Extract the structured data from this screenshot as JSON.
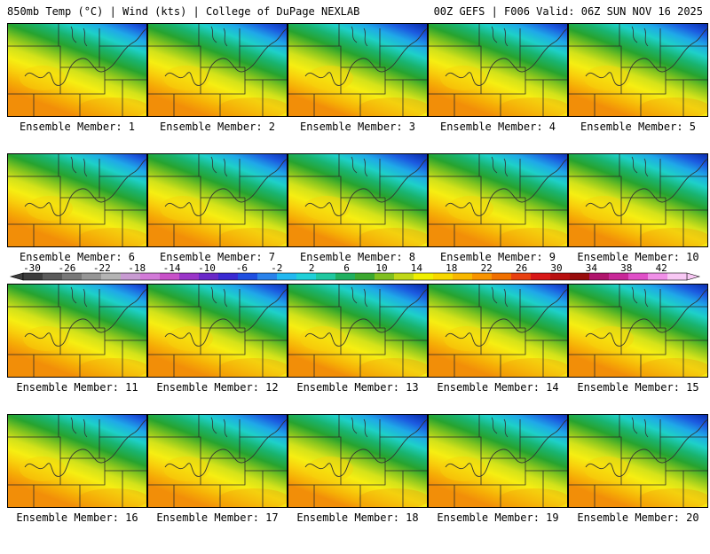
{
  "header": {
    "left": "850mb Temp (°C) | Wind (kts) | College of DuPage NEXLAB",
    "right": "00Z GEFS | F006 Valid: 06Z SUN NOV 16 2025"
  },
  "members": [
    {
      "label": "Ensemble Member: 1"
    },
    {
      "label": "Ensemble Member: 2"
    },
    {
      "label": "Ensemble Member: 3"
    },
    {
      "label": "Ensemble Member: 4"
    },
    {
      "label": "Ensemble Member: 5"
    },
    {
      "label": "Ensemble Member: 6"
    },
    {
      "label": "Ensemble Member: 7"
    },
    {
      "label": "Ensemble Member: 8"
    },
    {
      "label": "Ensemble Member: 9"
    },
    {
      "label": "Ensemble Member: 10"
    },
    {
      "label": "Ensemble Member: 11"
    },
    {
      "label": "Ensemble Member: 12"
    },
    {
      "label": "Ensemble Member: 13"
    },
    {
      "label": "Ensemble Member: 14"
    },
    {
      "label": "Ensemble Member: 15"
    },
    {
      "label": "Ensemble Member: 16"
    },
    {
      "label": "Ensemble Member: 17"
    },
    {
      "label": "Ensemble Member: 18"
    },
    {
      "label": "Ensemble Member: 19"
    },
    {
      "label": "Ensemble Member: 20"
    }
  ],
  "colorbar": {
    "tick_labels": [
      "-30",
      "-26",
      "-22",
      "-18",
      "-14",
      "-10",
      "-6",
      "-2",
      "2",
      "6",
      "10",
      "14",
      "18",
      "22",
      "26",
      "30",
      "34",
      "38",
      "42"
    ],
    "colors": [
      "#3c3c3c",
      "#5a5a5a",
      "#787878",
      "#969696",
      "#b4b4b4",
      "#c89bd2",
      "#d27ad8",
      "#c851c8",
      "#9a35c8",
      "#6a28c8",
      "#3a2ad2",
      "#1f4fe0",
      "#2a82ea",
      "#22b8f0",
      "#20d0d8",
      "#20c8a0",
      "#20b060",
      "#3ca830",
      "#80c020",
      "#c0d818",
      "#f0f000",
      "#f8d800",
      "#f8b800",
      "#f89400",
      "#f07000",
      "#e84010",
      "#d81818",
      "#b81010",
      "#980c0c",
      "#b0146c",
      "#c82898",
      "#e050c8",
      "#f090e8",
      "#f8c8f4"
    ],
    "map_gradient": [
      "#0b2fb0",
      "#1c5ae0",
      "#1fa8e8",
      "#1ed0c8",
      "#19b470",
      "#27a32e",
      "#83c41f",
      "#d3e21a",
      "#f6ee12",
      "#f8cf0c",
      "#f6ad06",
      "#f28e08"
    ]
  }
}
